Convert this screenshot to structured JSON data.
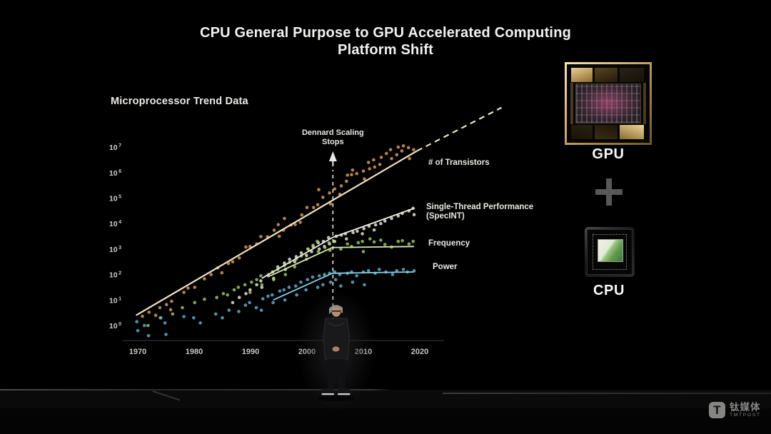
{
  "slide": {
    "title_line1": "CPU General Purpose to GPU Accelerated Computing",
    "title_line2": "Platform Shift",
    "chart_heading": "Microprocessor Trend Data"
  },
  "chart_data": {
    "type": "scatter",
    "title": "Microprocessor Trend Data",
    "x_range": [
      1970,
      2020
    ],
    "x_ticks": [
      "1970",
      "1980",
      "1990",
      "2000",
      "2010",
      "2020"
    ],
    "y_scale": "log10",
    "y_base": "10",
    "y_tick_exponents": [
      7,
      6,
      5,
      4,
      3,
      2,
      1,
      0
    ],
    "grid": false,
    "annotation": {
      "label_line1": "Dennard Scaling",
      "label_line2": "Stops",
      "year": 2004.6
    },
    "series": [
      {
        "key": "transistors",
        "label_lines": [
          "# of Transistors"
        ],
        "color": "#e2a35a",
        "line_color": "#f2e2c0",
        "points": [
          [
            1971,
            0.36
          ],
          [
            1972,
            0.52
          ],
          [
            1973,
            0.4
          ],
          [
            1974,
            0.7
          ],
          [
            1975,
            0.82
          ],
          [
            1976,
            0.62
          ],
          [
            1976,
            0.95
          ],
          [
            1978,
            1.3
          ],
          [
            1979,
            1.47
          ],
          [
            1980,
            1.5
          ],
          [
            1982,
            1.83
          ],
          [
            1983,
            2.0
          ],
          [
            1984,
            2.26
          ],
          [
            1985,
            2.07
          ],
          [
            1986,
            2.43
          ],
          [
            1987,
            2.5
          ],
          [
            1988,
            2.65
          ],
          [
            1989,
            3.08
          ],
          [
            1990,
            3.1
          ],
          [
            1991,
            3.2
          ],
          [
            1992,
            3.49
          ],
          [
            1993,
            3.48
          ],
          [
            1994,
            3.74
          ],
          [
            1995,
            3.96
          ],
          [
            1995,
            3.5
          ],
          [
            1996,
            3.74
          ],
          [
            1996,
            4.2
          ],
          [
            1997,
            3.94
          ],
          [
            1998,
            3.96
          ],
          [
            1999,
            4.34
          ],
          [
            1999,
            4.05
          ],
          [
            2000,
            4.63
          ],
          [
            2001,
            4.63
          ],
          [
            2002,
            4.74
          ],
          [
            2002,
            5.33
          ],
          [
            2003,
            5.03
          ],
          [
            2004,
            5.2
          ],
          [
            2004,
            4.77
          ],
          [
            2005,
            5.36
          ],
          [
            2006,
            5.48
          ],
          [
            2006,
            5.15
          ],
          [
            2007,
            5.66
          ],
          [
            2007,
            5.9
          ],
          [
            2008,
            5.92
          ],
          [
            2008,
            6.1
          ],
          [
            2009,
            5.96
          ],
          [
            2010,
            6.06
          ],
          [
            2010,
            5.75
          ],
          [
            2011,
            6.4
          ],
          [
            2011,
            6.15
          ],
          [
            2012,
            6.5
          ],
          [
            2012,
            6.22
          ],
          [
            2013,
            6.6
          ],
          [
            2013,
            6.32
          ],
          [
            2014,
            6.75
          ],
          [
            2015,
            6.9
          ],
          [
            2015,
            6.55
          ],
          [
            2016,
            7.0
          ],
          [
            2016,
            6.7
          ],
          [
            2017,
            7.05
          ],
          [
            2017,
            6.85
          ],
          [
            2018,
            6.98
          ],
          [
            2018,
            6.55
          ],
          [
            2019,
            6.9
          ]
        ]
      },
      {
        "key": "single_thread",
        "label_lines": [
          "Single-Thread Performance",
          "(SpecINT)"
        ],
        "color": "#f0ece0",
        "line_color": "#f0ece0",
        "points": [
          [
            1987,
            0.9
          ],
          [
            1988,
            1.1
          ],
          [
            1989,
            1.25
          ],
          [
            1990,
            1.4
          ],
          [
            1991,
            1.6
          ],
          [
            1992,
            1.75
          ],
          [
            1992,
            1.5
          ],
          [
            1993,
            1.95
          ],
          [
            1994,
            2.1
          ],
          [
            1994,
            1.85
          ],
          [
            1995,
            2.3
          ],
          [
            1996,
            2.45
          ],
          [
            1996,
            2.2
          ],
          [
            1997,
            2.6
          ],
          [
            1998,
            2.7
          ],
          [
            1998,
            2.5
          ],
          [
            1999,
            2.85
          ],
          [
            2000,
            3.0
          ],
          [
            2000,
            2.75
          ],
          [
            2001,
            3.1
          ],
          [
            2001,
            2.9
          ],
          [
            2002,
            3.25
          ],
          [
            2002,
            3.0
          ],
          [
            2003,
            3.3
          ],
          [
            2003,
            3.1
          ],
          [
            2004,
            3.45
          ],
          [
            2004,
            3.2
          ],
          [
            2005,
            3.5
          ],
          [
            2005,
            3.3
          ],
          [
            2006,
            3.55
          ],
          [
            2007,
            3.6
          ],
          [
            2007,
            3.4
          ],
          [
            2008,
            3.65
          ],
          [
            2009,
            3.7
          ],
          [
            2010,
            3.8
          ],
          [
            2010,
            3.6
          ],
          [
            2011,
            3.9
          ],
          [
            2012,
            3.95
          ],
          [
            2012,
            3.75
          ],
          [
            2013,
            4.0
          ],
          [
            2014,
            4.1
          ],
          [
            2015,
            4.2
          ],
          [
            2016,
            4.3
          ],
          [
            2017,
            4.4
          ],
          [
            2018,
            4.5
          ],
          [
            2019,
            4.6
          ],
          [
            2019,
            4.35
          ]
        ]
      },
      {
        "key": "frequency",
        "label_lines": [
          "Frequency"
        ],
        "color": "#a3cf62",
        "line_color": "#d6e8ac",
        "points": [
          [
            1972,
            0.0
          ],
          [
            1974,
            0.3
          ],
          [
            1976,
            0.45
          ],
          [
            1978,
            0.7
          ],
          [
            1980,
            0.9
          ],
          [
            1982,
            1.03
          ],
          [
            1984,
            1.1
          ],
          [
            1985,
            1.25
          ],
          [
            1986,
            1.2
          ],
          [
            1987,
            1.4
          ],
          [
            1988,
            1.5
          ],
          [
            1989,
            1.6
          ],
          [
            1990,
            1.7
          ],
          [
            1990,
            1.3
          ],
          [
            1991,
            1.8
          ],
          [
            1992,
            1.95
          ],
          [
            1992,
            1.6
          ],
          [
            1993,
            2.0
          ],
          [
            1994,
            2.1
          ],
          [
            1994,
            1.8
          ],
          [
            1995,
            2.2
          ],
          [
            1996,
            2.35
          ],
          [
            1996,
            2.0
          ],
          [
            1997,
            2.48
          ],
          [
            1998,
            2.6
          ],
          [
            1998,
            2.3
          ],
          [
            1999,
            2.73
          ],
          [
            2000,
            3.0
          ],
          [
            2000,
            2.6
          ],
          [
            2001,
            3.15
          ],
          [
            2002,
            3.3
          ],
          [
            2002,
            2.9
          ],
          [
            2003,
            3.06
          ],
          [
            2004,
            3.25
          ],
          [
            2004,
            2.95
          ],
          [
            2005,
            3.3
          ],
          [
            2006,
            3.0
          ],
          [
            2007,
            3.2
          ],
          [
            2008,
            3.1
          ],
          [
            2009,
            3.25
          ],
          [
            2010,
            3.3
          ],
          [
            2010,
            2.9
          ],
          [
            2011,
            3.4
          ],
          [
            2012,
            3.28
          ],
          [
            2013,
            3.35
          ],
          [
            2014,
            3.18
          ],
          [
            2015,
            3.08
          ],
          [
            2016,
            3.3
          ],
          [
            2017,
            3.33
          ],
          [
            2018,
            3.2
          ],
          [
            2019,
            3.3
          ]
        ]
      },
      {
        "key": "power",
        "label_lines": [
          "Power"
        ],
        "color": "#5cb9d8",
        "line_color": "#86d2ea",
        "points": [
          [
            1970,
            0.15
          ],
          [
            1970,
            -0.2
          ],
          [
            1971,
            0.0
          ],
          [
            1972,
            -0.4
          ],
          [
            1974,
            0.3
          ],
          [
            1975,
            0.1
          ],
          [
            1975,
            -0.35
          ],
          [
            1978,
            0.35
          ],
          [
            1980,
            0.3
          ],
          [
            1981,
            0.1
          ],
          [
            1984,
            0.45
          ],
          [
            1985,
            0.3
          ],
          [
            1986,
            0.6
          ],
          [
            1988,
            0.55
          ],
          [
            1989,
            0.8
          ],
          [
            1990,
            0.9
          ],
          [
            1991,
            0.7
          ],
          [
            1992,
            1.05
          ],
          [
            1992,
            0.6
          ],
          [
            1993,
            1.15
          ],
          [
            1994,
            1.2
          ],
          [
            1994,
            0.9
          ],
          [
            1995,
            1.35
          ],
          [
            1996,
            1.4
          ],
          [
            1996,
            1.0
          ],
          [
            1997,
            1.5
          ],
          [
            1998,
            1.55
          ],
          [
            1998,
            1.2
          ],
          [
            1999,
            1.7
          ],
          [
            2000,
            1.8
          ],
          [
            2000,
            1.4
          ],
          [
            2001,
            1.9
          ],
          [
            2002,
            1.95
          ],
          [
            2002,
            1.5
          ],
          [
            2003,
            2.0
          ],
          [
            2003,
            1.6
          ],
          [
            2004,
            2.05
          ],
          [
            2004,
            1.7
          ],
          [
            2005,
            2.1
          ],
          [
            2005,
            1.8
          ],
          [
            2006,
            2.0
          ],
          [
            2006,
            1.55
          ],
          [
            2007,
            2.05
          ],
          [
            2008,
            2.1
          ],
          [
            2008,
            1.7
          ],
          [
            2009,
            1.95
          ],
          [
            2010,
            2.1
          ],
          [
            2010,
            1.6
          ],
          [
            2011,
            2.15
          ],
          [
            2012,
            2.05
          ],
          [
            2013,
            2.2
          ],
          [
            2014,
            2.1
          ],
          [
            2015,
            2.0
          ],
          [
            2016,
            2.15
          ],
          [
            2017,
            2.2
          ],
          [
            2018,
            2.1
          ],
          [
            2019,
            2.15
          ]
        ]
      }
    ],
    "trend_lines": [
      {
        "series": "transistors",
        "style": "solid",
        "points": [
          [
            1969.7,
            0.4
          ],
          [
            2019.5,
            6.85
          ]
        ]
      },
      {
        "series": "transistors",
        "style": "dashed",
        "points": [
          [
            2019.5,
            6.85
          ],
          [
            2034.5,
            8.55
          ]
        ]
      },
      {
        "series": "single_thread",
        "style": "solid",
        "points": [
          [
            1992,
            1.85
          ],
          [
            2004.5,
            3.45
          ],
          [
            2019,
            4.6
          ]
        ]
      },
      {
        "series": "frequency",
        "style": "solid",
        "points": [
          [
            1993.5,
            1.95
          ],
          [
            2004.5,
            3.06
          ],
          [
            2019,
            3.1
          ]
        ]
      },
      {
        "series": "power",
        "style": "solid",
        "points": [
          [
            1994,
            1.0
          ],
          [
            2004.5,
            2.05
          ],
          [
            2019,
            2.1
          ]
        ]
      }
    ],
    "legend_position": "right-of-data"
  },
  "side_panel": {
    "gpu_label": "GPU",
    "plus": "+",
    "cpu_label": "CPU"
  },
  "watermark": {
    "logo_letter": "T",
    "cn": "钛媒体",
    "en": "TMTPOST"
  }
}
